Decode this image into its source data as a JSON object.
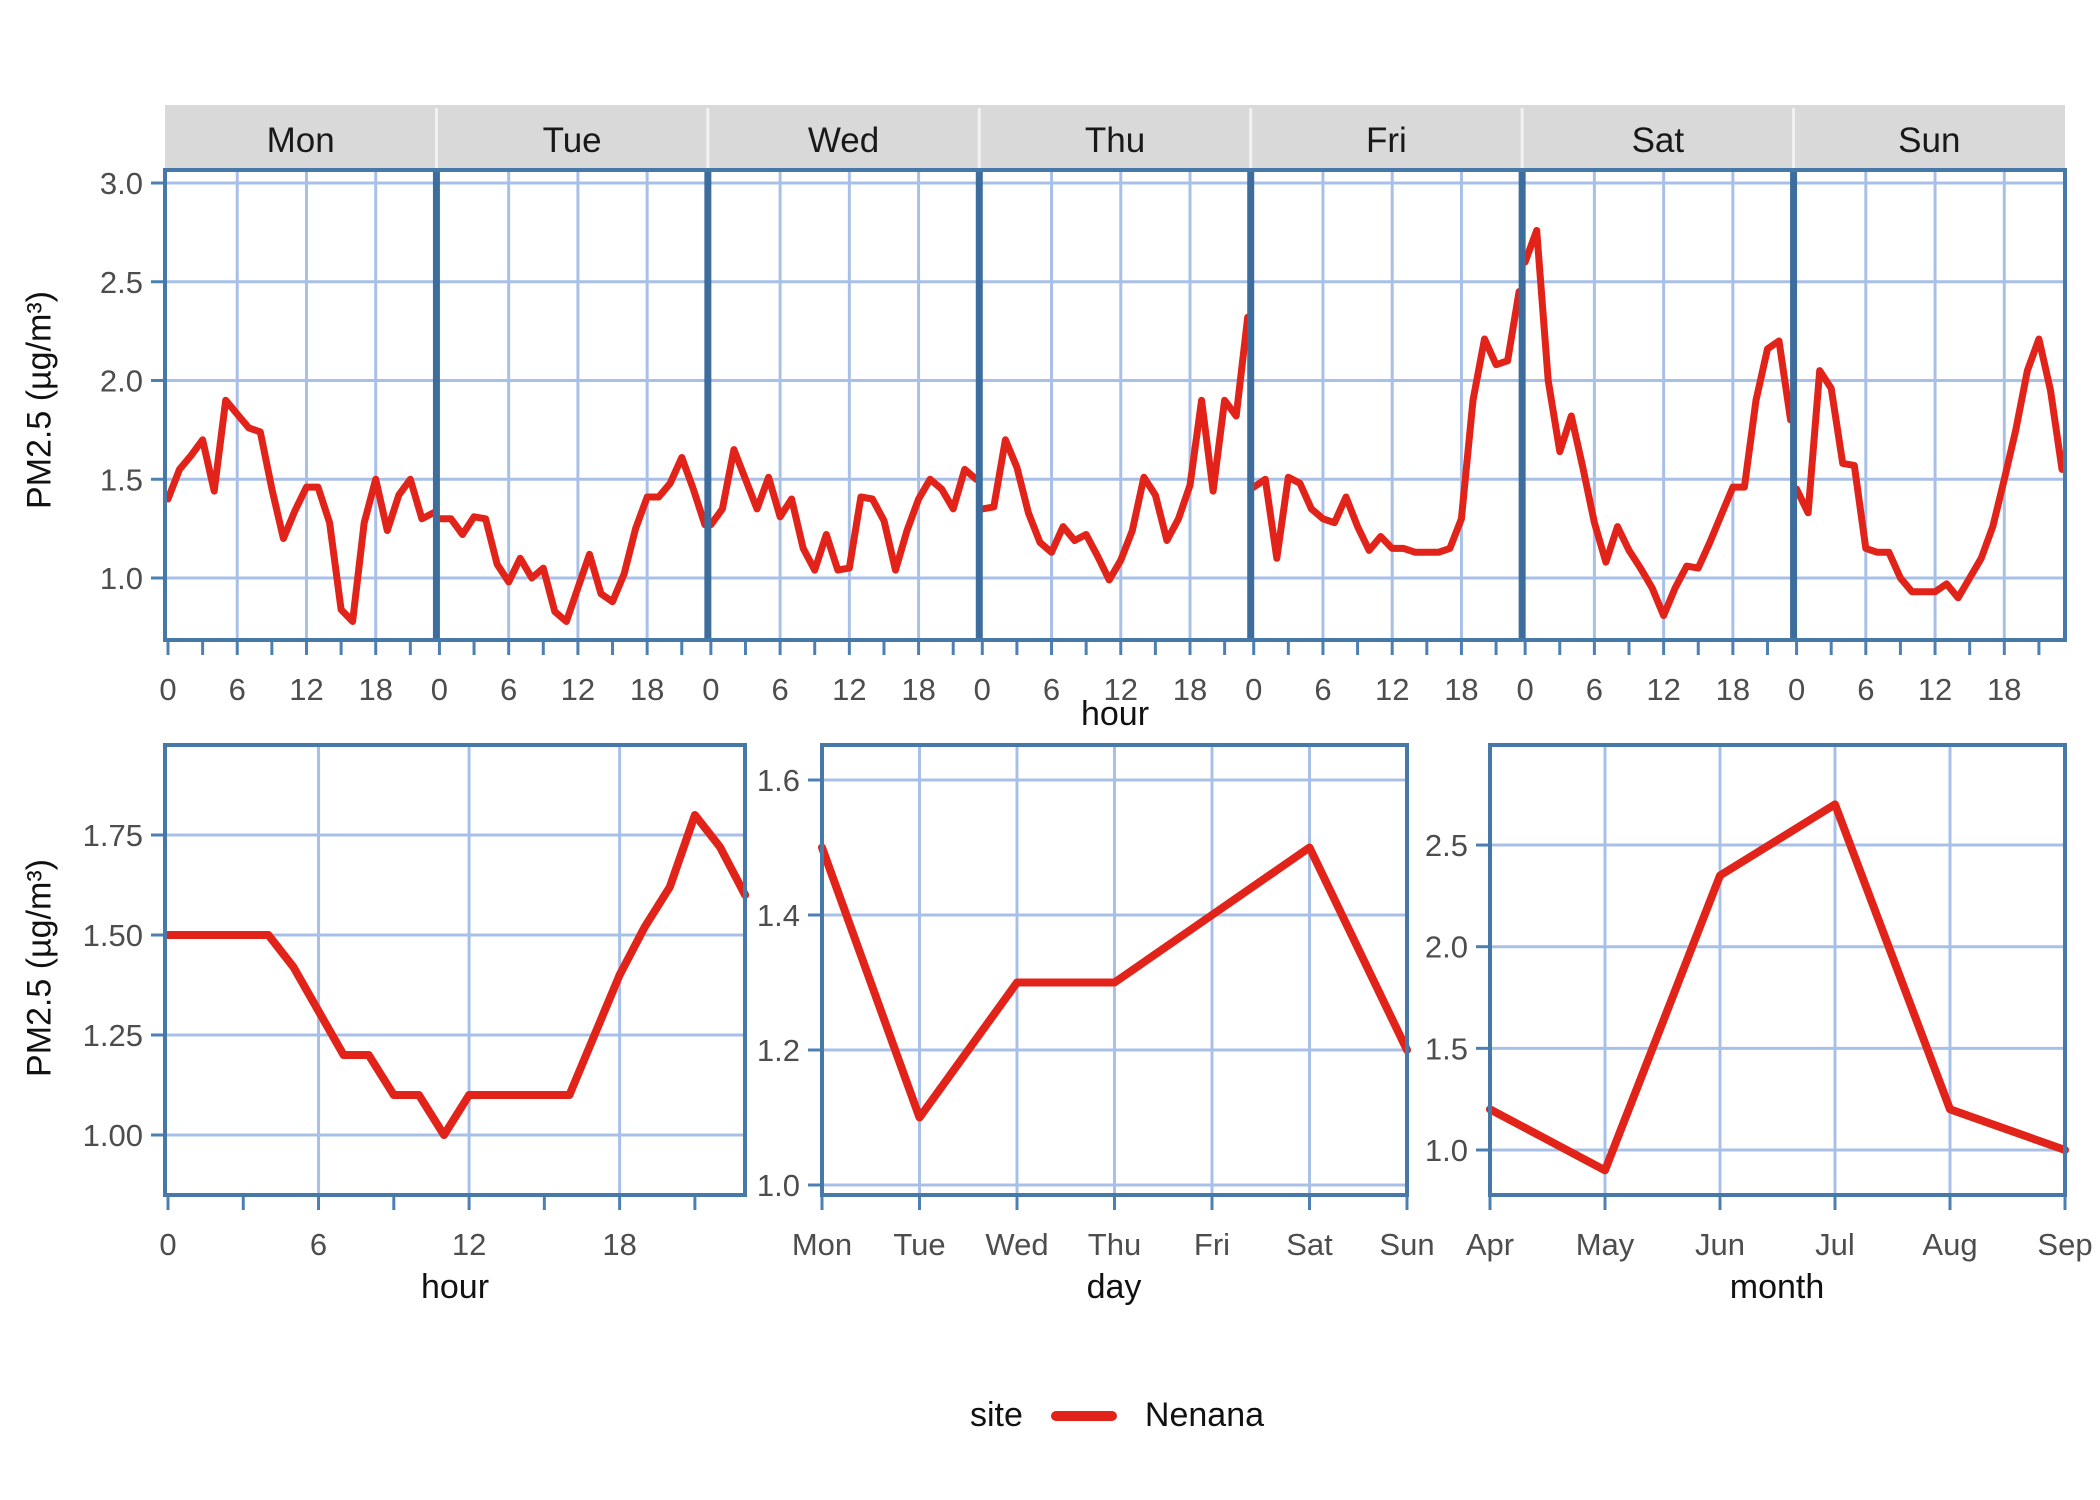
{
  "palette": {
    "red": "#e2231a",
    "panel_border": "#4678a8",
    "facet_divider": "#3d6d9c",
    "grid": "#a8c0e8",
    "tick": "#4c80b4",
    "strip_bg": "#d9d9d9",
    "tick_label": "#4d4d4d",
    "text": "#111111"
  },
  "labels": {
    "ylabel": "PM2.5 (µg/m³)"
  },
  "legend": {
    "title": "site",
    "series": [
      {
        "label": "Nenana",
        "color": "#e2231a"
      }
    ]
  },
  "chart_data": [
    {
      "type": "line",
      "id": "weekday-diurnal-panel",
      "xlabel": "hour",
      "ylabel": "PM2.5 (µg/m³)",
      "yticks": [
        "3.0",
        "2.5",
        "2.0",
        "1.5",
        "1.0"
      ],
      "ytick_values": [
        3.0,
        2.5,
        2.0,
        1.5,
        1.0
      ],
      "ylim": [
        0.69,
        3.07
      ],
      "xtick_labels": [
        0,
        6,
        12,
        18
      ],
      "minor_tick_step": 3,
      "legend_position": "bottom",
      "grid": true,
      "facets": [
        {
          "label": "Mon",
          "values": [
            1.4,
            1.55,
            1.62,
            1.7,
            1.44,
            1.9,
            1.83,
            1.76,
            1.74,
            1.45,
            1.2,
            1.34,
            1.46,
            1.46,
            1.28,
            0.84,
            0.78,
            1.28,
            1.5,
            1.24,
            1.42,
            1.5,
            1.3,
            1.33
          ]
        },
        {
          "label": "Tue",
          "values": [
            1.3,
            1.3,
            1.22,
            1.31,
            1.3,
            1.07,
            0.98,
            1.1,
            1.0,
            1.05,
            0.83,
            0.78,
            0.95,
            1.12,
            0.92,
            0.88,
            1.02,
            1.25,
            1.41,
            1.41,
            1.48,
            1.61,
            1.45,
            1.27
          ]
        },
        {
          "label": "Wed",
          "values": [
            1.27,
            1.35,
            1.65,
            1.5,
            1.35,
            1.51,
            1.31,
            1.4,
            1.15,
            1.04,
            1.22,
            1.04,
            1.05,
            1.41,
            1.4,
            1.29,
            1.04,
            1.24,
            1.4,
            1.5,
            1.45,
            1.35,
            1.55,
            1.5
          ]
        },
        {
          "label": "Thu",
          "values": [
            1.35,
            1.36,
            1.7,
            1.56,
            1.33,
            1.18,
            1.13,
            1.26,
            1.19,
            1.22,
            1.11,
            0.99,
            1.09,
            1.24,
            1.51,
            1.42,
            1.19,
            1.3,
            1.47,
            1.9,
            1.44,
            1.9,
            1.82,
            2.32
          ]
        },
        {
          "label": "Fri",
          "values": [
            1.46,
            1.5,
            1.1,
            1.51,
            1.48,
            1.35,
            1.3,
            1.28,
            1.41,
            1.26,
            1.14,
            1.21,
            1.15,
            1.15,
            1.13,
            1.13,
            1.13,
            1.15,
            1.3,
            1.9,
            2.21,
            2.08,
            2.1,
            2.45
          ]
        },
        {
          "label": "Sat",
          "values": [
            2.6,
            2.76,
            2.0,
            1.64,
            1.82,
            1.56,
            1.28,
            1.08,
            1.26,
            1.14,
            1.05,
            0.95,
            0.81,
            0.95,
            1.06,
            1.05,
            1.18,
            1.32,
            1.46,
            1.46,
            1.9,
            2.16,
            2.2,
            1.8
          ]
        },
        {
          "label": "Sun",
          "values": [
            1.45,
            1.33,
            2.05,
            1.96,
            1.58,
            1.57,
            1.15,
            1.13,
            1.13,
            1.0,
            0.93,
            0.93,
            0.93,
            0.97,
            0.9,
            1.0,
            1.1,
            1.26,
            1.5,
            1.75,
            2.05,
            2.21,
            1.95,
            1.55
          ]
        }
      ]
    },
    {
      "type": "line",
      "id": "hour-mean",
      "xlabel": "hour",
      "yticks": [
        "1.75",
        "1.50",
        "1.25",
        "1.00"
      ],
      "ytick_values": [
        1.75,
        1.5,
        1.25,
        1.0
      ],
      "ylim": [
        0.85,
        1.98
      ],
      "xtick_labels": [
        0,
        6,
        12,
        18
      ],
      "minor_tick_step": 3,
      "grid": true,
      "x": [
        0,
        1,
        2,
        3,
        4,
        5,
        6,
        7,
        8,
        9,
        10,
        11,
        12,
        13,
        14,
        15,
        16,
        17,
        18,
        19,
        20,
        21,
        22,
        23
      ],
      "values": [
        1.5,
        1.5,
        1.5,
        1.5,
        1.5,
        1.42,
        1.31,
        1.2,
        1.2,
        1.1,
        1.1,
        1.0,
        1.1,
        1.1,
        1.1,
        1.1,
        1.1,
        1.25,
        1.4,
        1.52,
        1.62,
        1.8,
        1.72,
        1.6
      ]
    },
    {
      "type": "line",
      "id": "day-mean",
      "xlabel": "day",
      "yticks": [
        "1.6",
        "1.4",
        "1.2",
        "1.0"
      ],
      "ytick_values": [
        1.6,
        1.4,
        1.2,
        1.0
      ],
      "ylim": [
        0.99,
        1.66
      ],
      "grid": true,
      "categories": [
        "Mon",
        "Tue",
        "Wed",
        "Thu",
        "Fri",
        "Sat",
        "Sun"
      ],
      "values": [
        1.5,
        1.1,
        1.3,
        1.3,
        1.4,
        1.5,
        1.2
      ]
    },
    {
      "type": "line",
      "id": "month-mean",
      "xlabel": "month",
      "yticks": [
        "2.5",
        "2.0",
        "1.5",
        "1.0"
      ],
      "ytick_values": [
        2.5,
        2.0,
        1.5,
        1.0
      ],
      "ylim": [
        0.78,
        2.99
      ],
      "grid": true,
      "categories": [
        "Apr",
        "May",
        "Jun",
        "Jul",
        "Aug",
        "Sep"
      ],
      "values": [
        1.2,
        0.9,
        2.35,
        2.7,
        1.2,
        1.0
      ]
    }
  ]
}
